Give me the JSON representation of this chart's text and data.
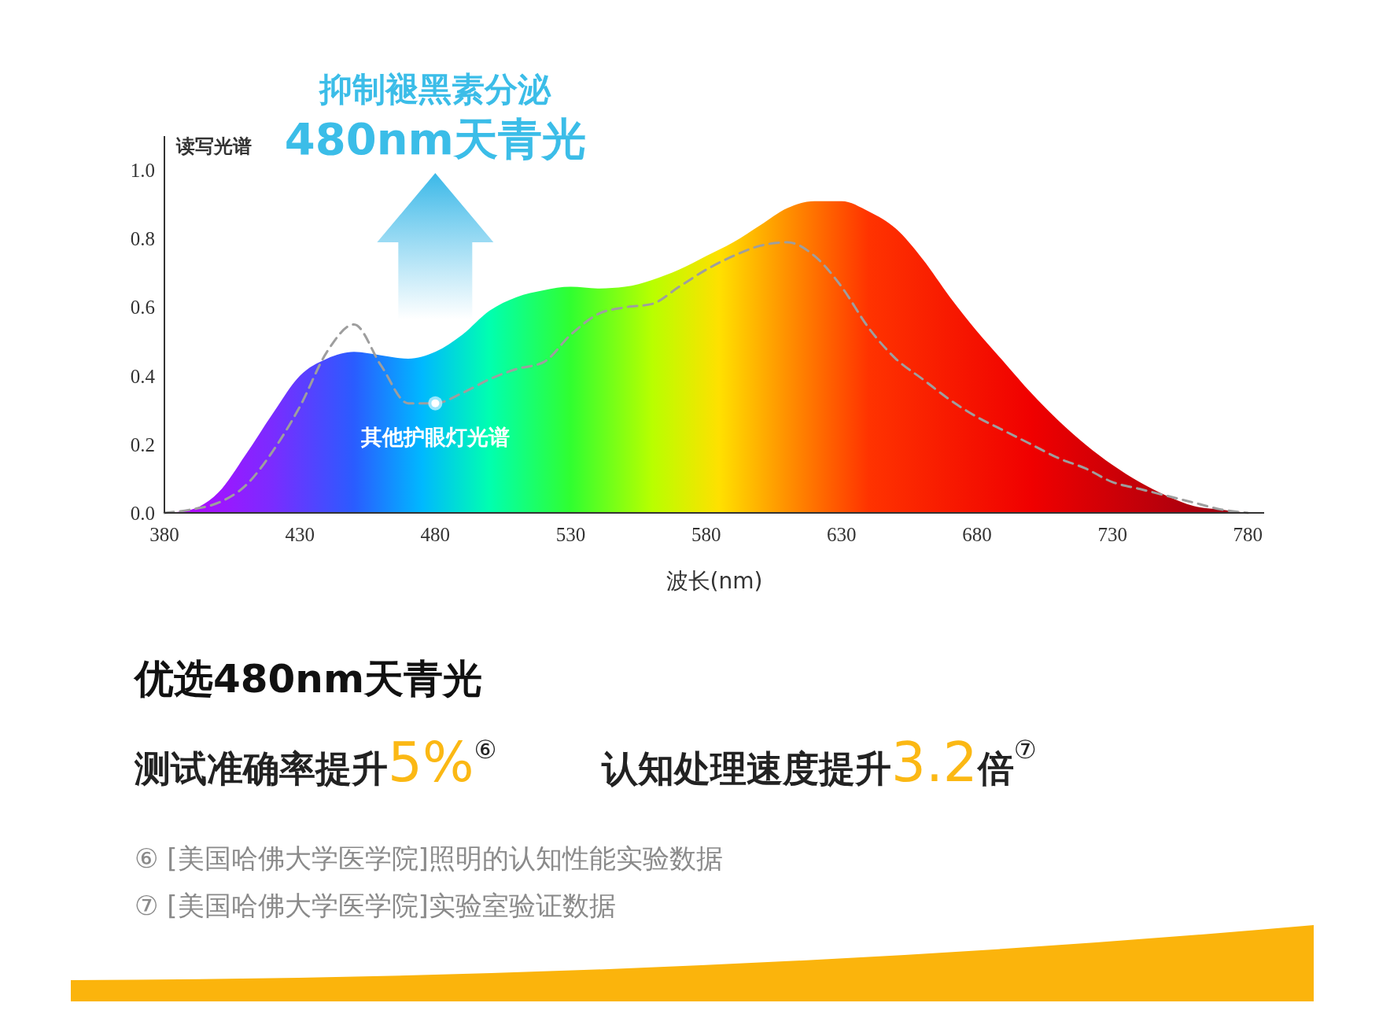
{
  "chart_data": {
    "type": "area",
    "title": "抑制褪黑素分泌",
    "subtitle": "480nm天青光",
    "ylabel": "读写光谱",
    "xlabel": "波长(nm)",
    "xlim": [
      380,
      786
    ],
    "ylim": [
      0,
      1.1
    ],
    "xticks": [
      380,
      430,
      480,
      530,
      580,
      630,
      680,
      730,
      780
    ],
    "yticks": [
      {
        "value": 0,
        "label": "0.0"
      },
      {
        "value": 0.2,
        "label": "0.2"
      },
      {
        "value": 0.4,
        "label": "0.4"
      },
      {
        "value": 0.6,
        "label": "0.6"
      },
      {
        "value": 0.8,
        "label": "0.8"
      },
      {
        "value": 1,
        "label": "1.0"
      }
    ],
    "grid": false,
    "x": [
      380,
      390,
      400,
      410,
      420,
      430,
      440,
      450,
      460,
      470,
      480,
      490,
      500,
      510,
      520,
      530,
      540,
      550,
      560,
      570,
      580,
      590,
      600,
      610,
      620,
      630,
      640,
      650,
      660,
      670,
      680,
      690,
      700,
      710,
      720,
      730,
      740,
      750,
      760,
      770,
      780
    ],
    "series": [
      {
        "color": "#ff3300",
        "values": [
          0,
          0.01,
          0.06,
          0.17,
          0.29,
          0.4,
          0.45,
          0.47,
          0.46,
          0.45,
          0.47,
          0.52,
          0.59,
          0.63,
          0.65,
          0.66,
          0.655,
          0.66,
          0.68,
          0.71,
          0.75,
          0.79,
          0.84,
          0.89,
          0.91,
          0.91,
          0.88,
          0.83,
          0.74,
          0.63,
          0.53,
          0.44,
          0.35,
          0.27,
          0.2,
          0.14,
          0.09,
          0.05,
          0.02,
          0.01,
          0
        ]
      },
      {
        "type": "line",
        "color": "#9e9e9e",
        "line_style": "dashed",
        "values": [
          0,
          0.01,
          0.03,
          0.08,
          0.18,
          0.31,
          0.47,
          0.55,
          0.43,
          0.32,
          0.32,
          0.35,
          0.39,
          0.42,
          0.44,
          0.52,
          0.58,
          0.6,
          0.61,
          0.66,
          0.71,
          0.75,
          0.78,
          0.79,
          0.75,
          0.66,
          0.54,
          0.45,
          0.39,
          0.33,
          0.28,
          0.24,
          0.2,
          0.16,
          0.13,
          0.09,
          0.07,
          0.05,
          0.03,
          0.01,
          0
        ]
      }
    ],
    "annotations": [
      {
        "text": "其他护眼灯光谱",
        "x": 480,
        "y": 0.32
      },
      "优选480nm天青光",
      "测试准确率提升5%$^{⑥}$",
      "认知处理速度提升3.2倍$^{⑦}$",
      "⑥ [美国哈佛大学医学院]照明的认知性能实验数据",
      "⑦ [美国哈佛大学医学院]实验室验证数据"
    ]
  }
}
